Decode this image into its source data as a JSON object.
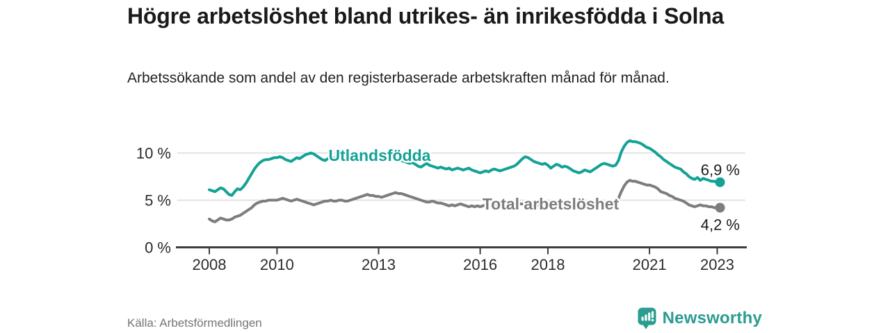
{
  "title": "Högre arbetslöshet bland utrikes- än inrikesfödda i Solna",
  "subtitle": "Arbetssökande som andel av den registerbaserade arbetskraften månad för månad.",
  "source_label": "Källa: Arbetsförmedlingen",
  "logo": {
    "wordmark": "Newsworthy",
    "icon": "newsworthy-barchart-bubble-icon",
    "color": "#2a9c90"
  },
  "colors": {
    "foreign_born_line": "#14a296",
    "total_line": "#7d7d7d",
    "gridline": "#dadada",
    "axis": "#3c3c3c",
    "axis_text": "#2b2b2b",
    "value_label_text": "#1a1a1a"
  },
  "chart_data": {
    "type": "line",
    "x_unit": "month",
    "x_start": "2008-01",
    "x_end": "2023-02",
    "x_tick_years": [
      2008,
      2010,
      2013,
      2016,
      2018,
      2021,
      2023
    ],
    "y_ticks": [
      0,
      5,
      10
    ],
    "y_tick_labels": [
      "0 %",
      "5 %",
      "10 %"
    ],
    "ylim": [
      0,
      12
    ],
    "grid": "horizontal-only",
    "legend_position": "inline-labels-on-lines",
    "series": [
      {
        "name": "Utlandsfödda",
        "end_label": "6,9 %",
        "end_value": 6.9,
        "values": [
          6.1,
          6.0,
          5.9,
          6.1,
          6.3,
          6.2,
          5.9,
          5.6,
          5.5,
          5.9,
          6.2,
          6.1,
          6.4,
          6.8,
          7.3,
          7.8,
          8.3,
          8.7,
          9.0,
          9.2,
          9.3,
          9.3,
          9.4,
          9.5,
          9.5,
          9.6,
          9.5,
          9.3,
          9.2,
          9.1,
          9.3,
          9.5,
          9.4,
          9.6,
          9.8,
          9.9,
          10.0,
          9.9,
          9.7,
          9.5,
          9.3,
          9.2,
          9.4,
          9.6,
          9.5,
          9.3,
          9.4,
          9.5,
          9.3,
          9.2,
          9.4,
          9.3,
          9.5,
          9.6,
          9.7,
          9.8,
          9.7,
          9.8,
          9.9,
          9.9,
          10.0,
          9.8,
          9.7,
          9.6,
          9.5,
          9.4,
          9.5,
          9.3,
          9.2,
          9.1,
          9.0,
          8.9,
          9.0,
          8.8,
          8.6,
          8.5,
          8.7,
          8.9,
          8.7,
          8.6,
          8.5,
          8.4,
          8.5,
          8.4,
          8.3,
          8.4,
          8.2,
          8.3,
          8.4,
          8.3,
          8.2,
          8.3,
          8.4,
          8.2,
          8.1,
          8.0,
          7.9,
          8.0,
          8.1,
          8.0,
          8.2,
          8.3,
          8.2,
          8.1,
          8.2,
          8.3,
          8.4,
          8.5,
          8.6,
          8.8,
          9.1,
          9.4,
          9.6,
          9.5,
          9.3,
          9.1,
          9.0,
          8.9,
          8.8,
          8.9,
          8.7,
          8.4,
          8.6,
          8.8,
          8.7,
          8.5,
          8.6,
          8.5,
          8.3,
          8.1,
          8.0,
          7.9,
          8.0,
          8.2,
          8.1,
          8.0,
          8.2,
          8.4,
          8.6,
          8.8,
          8.9,
          8.8,
          8.7,
          8.6,
          8.7,
          9.2,
          10.1,
          10.7,
          11.1,
          11.3,
          11.2,
          11.2,
          11.1,
          11.0,
          10.8,
          10.6,
          10.5,
          10.3,
          10.1,
          9.8,
          9.6,
          9.3,
          9.1,
          8.9,
          8.7,
          8.5,
          8.4,
          8.3,
          8.0,
          7.8,
          7.5,
          7.3,
          7.2,
          7.4,
          7.1,
          7.3,
          7.2,
          7.1,
          7.0,
          7.0,
          6.9,
          6.9
        ]
      },
      {
        "name": "Total arbetslöshet",
        "end_label": "4,2 %",
        "end_value": 4.2,
        "values": [
          3.0,
          2.8,
          2.7,
          2.9,
          3.1,
          3.0,
          2.9,
          2.9,
          3.0,
          3.2,
          3.3,
          3.4,
          3.6,
          3.8,
          4.0,
          4.2,
          4.5,
          4.7,
          4.8,
          4.9,
          4.9,
          5.0,
          5.0,
          5.0,
          5.0,
          5.1,
          5.2,
          5.1,
          5.0,
          4.9,
          5.0,
          5.1,
          5.0,
          4.9,
          4.8,
          4.7,
          4.6,
          4.5,
          4.6,
          4.7,
          4.8,
          4.9,
          4.9,
          5.0,
          4.9,
          4.9,
          5.0,
          5.0,
          4.9,
          4.9,
          5.0,
          5.1,
          5.2,
          5.3,
          5.4,
          5.5,
          5.6,
          5.5,
          5.5,
          5.4,
          5.4,
          5.3,
          5.4,
          5.5,
          5.6,
          5.7,
          5.8,
          5.7,
          5.7,
          5.6,
          5.5,
          5.4,
          5.3,
          5.2,
          5.1,
          5.0,
          4.9,
          4.8,
          4.8,
          4.9,
          4.8,
          4.7,
          4.7,
          4.6,
          4.5,
          4.4,
          4.5,
          4.4,
          4.5,
          4.6,
          4.5,
          4.4,
          4.3,
          4.4,
          4.3,
          4.4,
          4.3,
          4.4,
          4.5,
          4.4,
          4.3,
          4.4,
          4.5,
          4.4,
          4.4,
          4.3,
          4.4,
          4.4,
          4.4,
          4.5,
          4.6,
          4.6,
          4.5,
          4.6,
          4.6,
          4.5,
          4.5,
          4.4,
          4.4,
          4.5,
          4.4,
          4.3,
          4.4,
          4.4,
          4.3,
          4.3,
          4.4,
          4.3,
          4.2,
          4.2,
          4.3,
          4.3,
          4.3,
          4.4,
          4.4,
          4.3,
          4.4,
          4.5,
          4.6,
          4.6,
          4.7,
          4.6,
          4.6,
          4.7,
          4.8,
          5.2,
          5.9,
          6.5,
          6.9,
          7.1,
          7.0,
          7.0,
          6.9,
          6.8,
          6.7,
          6.6,
          6.6,
          6.5,
          6.4,
          6.2,
          5.9,
          5.8,
          5.7,
          5.5,
          5.4,
          5.2,
          5.1,
          5.0,
          4.9,
          4.7,
          4.5,
          4.4,
          4.3,
          4.4,
          4.5,
          4.4,
          4.4,
          4.3,
          4.3,
          4.2,
          4.2,
          4.2
        ]
      }
    ]
  }
}
